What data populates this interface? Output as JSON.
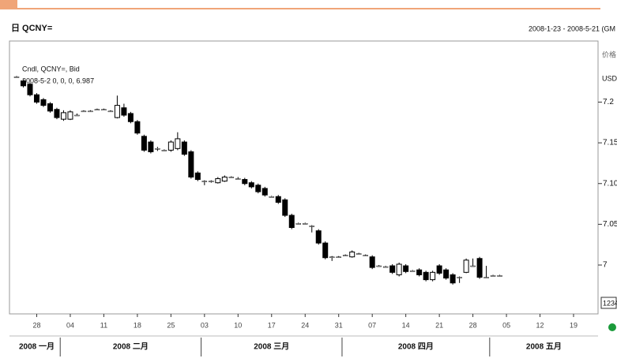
{
  "chart_data": {
    "type": "candlestick",
    "title": "日 QCNY=",
    "date_range": "2008-1-23 - 2008-5-21 (GM",
    "legend_lines": [
      "Cndl, QCNY=, Bid",
      "2008-5-2 0, 0, 0, 6.987"
    ],
    "y_axis_label": "价格",
    "y_axis_unit": "USD",
    "corner_label": "1234",
    "xlim": [
      "2008-01-23",
      "2008-05-21"
    ],
    "ylim": [
      6.94,
      7.275
    ],
    "yticks": [
      7.2,
      7.15,
      {
        "value": 7.1,
        "label": "7.10"
      },
      7.05,
      7
    ],
    "xticks": [
      {
        "value": "2008-01-28",
        "label": "28"
      },
      {
        "value": "2008-02-04",
        "label": "04"
      },
      {
        "value": "2008-02-11",
        "label": "11"
      },
      {
        "value": "2008-02-18",
        "label": "18"
      },
      {
        "value": "2008-02-25",
        "label": "25"
      },
      {
        "value": "2008-03-03",
        "label": "03"
      },
      {
        "value": "2008-03-10",
        "label": "10"
      },
      {
        "value": "2008-03-17",
        "label": "17"
      },
      {
        "value": "2008-03-24",
        "label": "24"
      },
      {
        "value": "2008-03-31",
        "label": "31"
      },
      {
        "value": "2008-04-07",
        "label": "07"
      },
      {
        "value": "2008-04-14",
        "label": "14"
      },
      {
        "value": "2008-04-21",
        "label": "21"
      },
      {
        "value": "2008-04-28",
        "label": "28"
      },
      {
        "value": "2008-05-05",
        "label": "05"
      },
      {
        "value": "2008-05-12",
        "label": "12"
      },
      {
        "value": "2008-05-19",
        "label": "19"
      }
    ],
    "month_labels": [
      {
        "value": "2008-01",
        "label": "2008 一月"
      },
      {
        "value": "2008-02",
        "label": "2008 二月"
      },
      {
        "value": "2008-03",
        "label": "2008 三月"
      },
      {
        "value": "2008-04",
        "label": "2008 四月"
      },
      {
        "value": "2008-05",
        "label": "2008 五月"
      }
    ],
    "x": [
      "2008-01-23",
      "2008-01-24",
      "2008-01-25",
      "2008-01-28",
      "2008-01-29",
      "2008-01-30",
      "2008-01-31",
      "2008-02-01",
      "2008-02-04",
      "2008-02-05",
      "2008-02-06",
      "2008-02-07",
      "2008-02-08",
      "2008-02-11",
      "2008-02-12",
      "2008-02-13",
      "2008-02-14",
      "2008-02-15",
      "2008-02-18",
      "2008-02-19",
      "2008-02-20",
      "2008-02-21",
      "2008-02-22",
      "2008-02-25",
      "2008-02-26",
      "2008-02-27",
      "2008-02-28",
      "2008-02-29",
      "2008-03-03",
      "2008-03-04",
      "2008-03-05",
      "2008-03-06",
      "2008-03-07",
      "2008-03-10",
      "2008-03-11",
      "2008-03-12",
      "2008-03-13",
      "2008-03-14",
      "2008-03-17",
      "2008-03-18",
      "2008-03-19",
      "2008-03-20",
      "2008-03-21",
      "2008-03-24",
      "2008-03-25",
      "2008-03-26",
      "2008-03-27",
      "2008-03-28",
      "2008-03-31",
      "2008-04-01",
      "2008-04-02",
      "2008-04-03",
      "2008-04-04",
      "2008-04-07",
      "2008-04-08",
      "2008-04-09",
      "2008-04-10",
      "2008-04-11",
      "2008-04-14",
      "2008-04-15",
      "2008-04-16",
      "2008-04-17",
      "2008-04-18",
      "2008-04-21",
      "2008-04-22",
      "2008-04-23",
      "2008-04-24",
      "2008-04-25",
      "2008-04-28",
      "2008-04-29",
      "2008-04-30",
      "2008-05-01",
      "2008-05-02"
    ],
    "open": [
      7.231,
      7.226,
      7.222,
      7.209,
      7.203,
      7.198,
      7.191,
      7.179,
      7.179,
      7.184,
      7.189,
      7.189,
      7.191,
      7.191,
      7.189,
      7.181,
      7.193,
      7.186,
      7.176,
      7.158,
      7.151,
      7.143,
      7.141,
      7.141,
      7.143,
      7.151,
      7.139,
      7.113,
      7.103,
      7.103,
      7.101,
      7.103,
      7.108,
      7.106,
      7.105,
      7.101,
      7.098,
      7.094,
      7.084,
      7.084,
      7.08,
      7.061,
      7.051,
      7.051,
      7.048,
      7.042,
      7.027,
      7.01,
      7.01,
      7.012,
      7.01,
      7.014,
      7.012,
      7.01,
      6.999,
      6.998,
      6.999,
      6.988,
      6.999,
      6.993,
      6.994,
      6.991,
      6.982,
      6.999,
      6.994,
      6.988,
      6.985,
      6.991,
      6.999,
      7.008,
      6.985,
      6.987,
      6.987
    ],
    "high": [
      7.232,
      7.228,
      7.224,
      7.211,
      7.205,
      7.2,
      7.193,
      7.19,
      7.19,
      7.186,
      7.19,
      7.19,
      7.192,
      7.192,
      7.19,
      7.208,
      7.198,
      7.188,
      7.178,
      7.16,
      7.153,
      7.145,
      7.142,
      7.153,
      7.163,
      7.153,
      7.141,
      7.115,
      7.104,
      7.104,
      7.108,
      7.11,
      7.109,
      7.108,
      7.107,
      7.103,
      7.1,
      7.096,
      7.085,
      7.086,
      7.082,
      7.063,
      7.052,
      7.052,
      7.049,
      7.044,
      7.029,
      7.011,
      7.011,
      7.013,
      7.018,
      7.015,
      7.013,
      7.012,
      7.0,
      6.999,
      7.001,
      7.003,
      7.001,
      6.994,
      6.996,
      6.993,
      6.993,
      7.001,
      6.996,
      6.99,
      6.986,
      7.008,
      7.008,
      7.01,
      6.999,
      6.988,
      6.988
    ],
    "low": [
      7.23,
      7.218,
      7.207,
      7.198,
      7.194,
      7.187,
      7.179,
      7.177,
      7.178,
      7.183,
      7.188,
      7.188,
      7.19,
      7.19,
      7.188,
      7.18,
      7.182,
      7.174,
      7.16,
      7.139,
      7.137,
      7.14,
      7.14,
      7.139,
      7.141,
      7.134,
      7.106,
      7.103,
      7.098,
      7.101,
      7.1,
      7.102,
      7.107,
      7.105,
      7.098,
      7.094,
      7.088,
      7.084,
      7.083,
      7.075,
      7.059,
      7.044,
      7.05,
      7.05,
      7.04,
      7.025,
      7.007,
      7.005,
      7.009,
      7.011,
      7.009,
      7.013,
      7.011,
      6.995,
      6.998,
      6.997,
      6.989,
      6.986,
      6.99,
      6.992,
      6.986,
      6.98,
      6.98,
      6.988,
      6.982,
      6.976,
      6.978,
      6.99,
      6.998,
      6.983,
      6.984,
      6.986,
      6.986
    ],
    "close": [
      7.231,
      7.22,
      7.209,
      7.2,
      7.196,
      7.189,
      7.181,
      7.187,
      7.188,
      7.184,
      7.189,
      7.189,
      7.191,
      7.191,
      7.189,
      7.196,
      7.184,
      7.176,
      7.162,
      7.141,
      7.139,
      7.143,
      7.141,
      7.151,
      7.155,
      7.136,
      7.108,
      7.105,
      7.103,
      7.103,
      7.106,
      7.108,
      7.108,
      7.106,
      7.1,
      7.096,
      7.09,
      7.086,
      7.084,
      7.077,
      7.061,
      7.046,
      7.051,
      7.051,
      7.048,
      7.027,
      7.009,
      7.01,
      7.01,
      7.012,
      7.016,
      7.014,
      7.012,
      6.997,
      6.999,
      6.998,
      6.991,
      7.001,
      6.992,
      6.993,
      6.988,
      6.982,
      6.991,
      6.99,
      6.984,
      6.978,
      6.985,
      7.006,
      6.999,
      6.985,
      6.985,
      6.987,
      6.987
    ],
    "up_color": "#ffffff",
    "down_color": "#000000"
  }
}
